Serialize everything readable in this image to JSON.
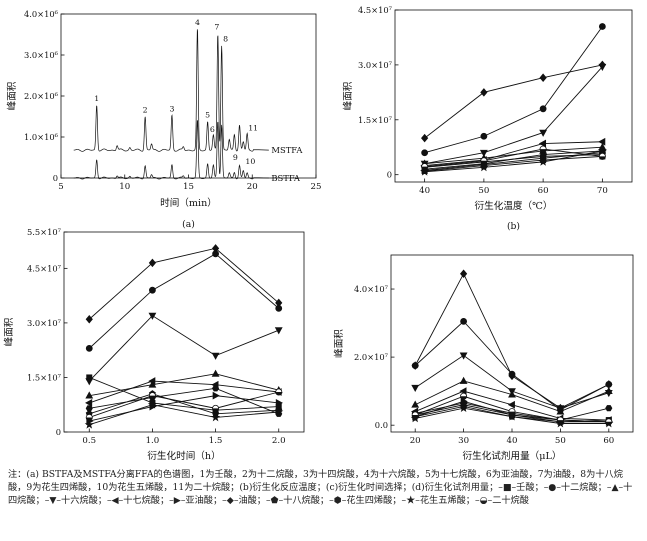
{
  "chart_data": [
    {
      "id": "a",
      "type": "line",
      "caption": "(a)",
      "xlabel": "时间（min）",
      "ylabel": "峰面积",
      "xlim": [
        5,
        25
      ],
      "ylim": [
        0,
        4000000
      ],
      "xticks": [
        5,
        10,
        15,
        20,
        25
      ],
      "yticks": [
        {
          "v": 0,
          "label": "0"
        },
        {
          "v": 1000000,
          "label": "1.0×10⁶"
        },
        {
          "v": 2000000,
          "label": "2.0×10⁶"
        },
        {
          "v": 3000000,
          "label": "3.0×10⁶"
        },
        {
          "v": 4000000,
          "label": "4.0×10⁶"
        }
      ],
      "series": [
        {
          "name": "MSTFA",
          "baseline": 680000,
          "noise": 30000
        },
        {
          "name": "BSTFA",
          "baseline": 0,
          "noise": 25000
        }
      ],
      "peaks": [
        {
          "label": "1",
          "x": 7.8,
          "mstfa": 1100000,
          "bstfa": 450000
        },
        {
          "label": "2",
          "x": 11.6,
          "mstfa": 820000,
          "bstfa": 300000
        },
        {
          "label": "3",
          "x": 13.7,
          "mstfa": 850000,
          "bstfa": 320000
        },
        {
          "label": "4",
          "x": 15.7,
          "mstfa": 2950000,
          "bstfa": 1400000
        },
        {
          "label": "5",
          "x": 16.5,
          "mstfa": 700000,
          "bstfa": 350000
        },
        {
          "label": "6",
          "x": 16.95,
          "mstfa": 350000,
          "bstfa": 300000
        },
        {
          "label": "7",
          "x": 17.3,
          "mstfa": 2850000,
          "bstfa": 1400000
        },
        {
          "label": "8",
          "x": 17.6,
          "mstfa": 2550000,
          "bstfa": 1300000
        },
        {
          "label": "9",
          "x": 18.6,
          "mstfa": 400000,
          "bstfa": 150000
        },
        {
          "label": "10",
          "x": 19.3,
          "mstfa": 200000,
          "bstfa": 180000
        },
        {
          "label": "11",
          "x": 19.6,
          "mstfa": 400000,
          "bstfa": 120000
        }
      ],
      "minor_peaks": [
        {
          "x": 9.4,
          "mstfa": 120000,
          "bstfa": 60000
        },
        {
          "x": 10.4,
          "mstfa": 60000,
          "bstfa": 40000
        },
        {
          "x": 12.1,
          "mstfa": 150000,
          "bstfa": 80000
        },
        {
          "x": 14.6,
          "mstfa": 80000,
          "bstfa": 50000
        },
        {
          "x": 18.2,
          "mstfa": 250000,
          "bstfa": 120000
        },
        {
          "x": 19.0,
          "mstfa": 600000,
          "bstfa": 300000
        },
        {
          "x": 20.2,
          "mstfa": 200000,
          "bstfa": 120000
        }
      ]
    },
    {
      "id": "b",
      "type": "line",
      "caption": "(b)",
      "xlabel": "衍生化温度（℃）",
      "ylabel": "峰面积",
      "xlim": [
        35,
        75
      ],
      "ylim": [
        -2000000,
        45000000
      ],
      "xticks": [
        40,
        50,
        60,
        70
      ],
      "yticks": [
        {
          "v": 0,
          "label": "0"
        },
        {
          "v": 15000000,
          "label": "1.5×10⁷"
        },
        {
          "v": 30000000,
          "label": "3.0×10⁷"
        },
        {
          "v": 45000000,
          "label": "4.5×10⁷"
        }
      ],
      "x": [
        40,
        50,
        60,
        70
      ],
      "series": [
        {
          "marker": "square",
          "values": [
            1000000,
            2500000,
            4000000,
            5000000
          ]
        },
        {
          "marker": "circle",
          "values": [
            6000000,
            10500000,
            18000000,
            40500000
          ]
        },
        {
          "marker": "triangle-up",
          "values": [
            3000000,
            4500000,
            6500000,
            7500000
          ]
        },
        {
          "marker": "triangle-down",
          "values": [
            3000000,
            6000000,
            11500000,
            29500000
          ]
        },
        {
          "marker": "triangle-left",
          "values": [
            2500000,
            4000000,
            8500000,
            9000000
          ]
        },
        {
          "marker": "triangle-right",
          "values": [
            1500000,
            3000000,
            5500000,
            6500000
          ]
        },
        {
          "marker": "diamond",
          "values": [
            10000000,
            22500000,
            26500000,
            30000000
          ]
        },
        {
          "marker": "pentagon",
          "values": [
            2000000,
            3500000,
            5000000,
            5500000
          ]
        },
        {
          "marker": "hexagon",
          "values": [
            1200000,
            2800000,
            4500000,
            6000000
          ]
        },
        {
          "marker": "star",
          "values": [
            800000,
            2000000,
            3500000,
            6500000
          ]
        },
        {
          "marker": "half-circle",
          "values": [
            2200000,
            3800000,
            7000000,
            5000000
          ]
        }
      ]
    },
    {
      "id": "c",
      "type": "line",
      "caption": "(c)",
      "xlabel": "衍生化时间（h）",
      "ylabel": "峰面积",
      "xlim": [
        0.3,
        2.2
      ],
      "ylim": [
        0,
        55000000
      ],
      "xticks": [
        0.5,
        1.0,
        1.5,
        2.0
      ],
      "xtick_labels": [
        "0.5",
        "1.0",
        "1.5",
        "2.0"
      ],
      "yticks": [
        {
          "v": 0,
          "label": "0"
        },
        {
          "v": 15000000,
          "label": "1.5×10⁷"
        },
        {
          "v": 30000000,
          "label": "3.0×10⁷"
        },
        {
          "v": 45000000,
          "label": "4.5×10⁷"
        },
        {
          "v": 55000000,
          "label": "5.5×10⁷"
        }
      ],
      "x": [
        0.5,
        1.0,
        1.5,
        2.0
      ],
      "series": [
        {
          "marker": "square",
          "values": [
            15000000,
            8000000,
            6000000,
            7000000
          ]
        },
        {
          "marker": "circle",
          "values": [
            23000000,
            39000000,
            49000000,
            34000000
          ]
        },
        {
          "marker": "triangle-up",
          "values": [
            10000000,
            13000000,
            16000000,
            11500000
          ]
        },
        {
          "marker": "triangle-down",
          "values": [
            14000000,
            32000000,
            21000000,
            28000000
          ]
        },
        {
          "marker": "triangle-left",
          "values": [
            8000000,
            14000000,
            13000000,
            11000000
          ]
        },
        {
          "marker": "triangle-right",
          "values": [
            3000000,
            7000000,
            10000000,
            8000000
          ]
        },
        {
          "marker": "diamond",
          "values": [
            31000000,
            46500000,
            50500000,
            35500000
          ]
        },
        {
          "marker": "pentagon",
          "values": [
            5000000,
            10500000,
            5000000,
            6000000
          ]
        },
        {
          "marker": "hexagon",
          "values": [
            6500000,
            9500000,
            12000000,
            5000000
          ]
        },
        {
          "marker": "star",
          "values": [
            2000000,
            7500000,
            4000000,
            5500000
          ]
        },
        {
          "marker": "half-circle",
          "values": [
            4000000,
            10000000,
            6500000,
            11000000
          ]
        }
      ]
    },
    {
      "id": "d",
      "type": "line",
      "caption": "(d)",
      "xlabel": "衍生化试剂用量（μL）",
      "ylabel": "峰面积",
      "xlim": [
        15,
        65
      ],
      "ylim": [
        -2000000,
        50000000
      ],
      "xticks": [
        20,
        30,
        40,
        50,
        60
      ],
      "yticks": [
        {
          "v": 0,
          "label": "0.0"
        },
        {
          "v": 20000000,
          "label": "2.0×10⁷"
        },
        {
          "v": 40000000,
          "label": "4.0×10⁷"
        }
      ],
      "x": [
        20,
        30,
        40,
        50,
        60
      ],
      "series": [
        {
          "marker": "square",
          "values": [
            3000000,
            6000000,
            3000000,
            1000000,
            1500000
          ]
        },
        {
          "marker": "circle",
          "values": [
            17500000,
            30500000,
            15000000,
            4500000,
            12000000
          ]
        },
        {
          "marker": "triangle-up",
          "values": [
            6000000,
            13000000,
            9000000,
            4000000,
            10000000
          ]
        },
        {
          "marker": "triangle-down",
          "values": [
            11000000,
            20500000,
            10000000,
            5000000,
            9500000
          ]
        },
        {
          "marker": "triangle-left",
          "values": [
            4000000,
            10000000,
            6000000,
            2000000,
            1500000
          ]
        },
        {
          "marker": "triangle-right",
          "values": [
            2500000,
            7000000,
            3000000,
            1500000,
            1000000
          ]
        },
        {
          "marker": "diamond",
          "values": [
            17500000,
            44500000,
            14500000,
            5000000,
            12000000
          ]
        },
        {
          "marker": "pentagon",
          "values": [
            2500000,
            5500000,
            2500000,
            1000000,
            1000000
          ]
        },
        {
          "marker": "hexagon",
          "values": [
            3500000,
            6500000,
            3500000,
            1500000,
            5000000
          ]
        },
        {
          "marker": "star",
          "values": [
            2000000,
            5000000,
            2500000,
            500000,
            500000
          ]
        },
        {
          "marker": "half-circle",
          "values": [
            3000000,
            8500000,
            4000000,
            1500000,
            1000000
          ]
        }
      ]
    }
  ],
  "note": {
    "text": "注：(a) BSTFA及MSTFA分离FFA的色谱图，1为壬酸，2为十二烷酸，3为十四烷酸，4为十六烷酸，5为十七烷酸，6为亚油酸，7为油酸，8为十八烷酸，9为花生四烯酸，10为花生五烯酸，11为二十烷酸；(b)衍生化反应温度；(c)衍生化时间选择；(d)衍生化试剂用量；",
    "legend": [
      {
        "symbol": "–■–",
        "label": "壬酸；"
      },
      {
        "symbol": "–●–",
        "label": "十二烷酸；"
      },
      {
        "symbol": "–▲–",
        "label": "十四烷酸；"
      },
      {
        "symbol": "–▼–",
        "label": "十六烷酸；"
      },
      {
        "symbol": "–◀–",
        "label": "十七烷酸；"
      },
      {
        "symbol": "–▶–",
        "label": "亚油酸；"
      },
      {
        "symbol": "–◆–",
        "label": "油酸；"
      },
      {
        "symbol": "–⬟–",
        "label": "十八烷酸；"
      },
      {
        "symbol": "–⬢–",
        "label": "花生四烯酸；"
      },
      {
        "symbol": "–★–",
        "label": "花生五烯酸；"
      },
      {
        "symbol": "–◒–",
        "label": "二十烷酸"
      }
    ]
  }
}
